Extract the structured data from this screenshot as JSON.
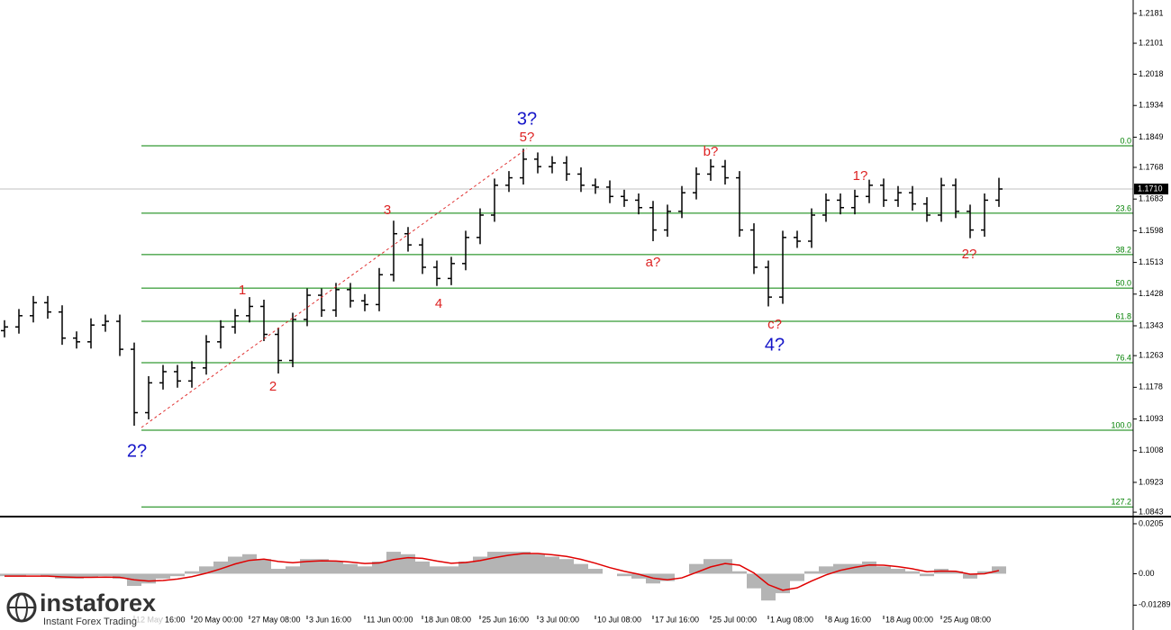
{
  "chart_data": {
    "type": "ohlc",
    "categories": [
      null,
      null,
      null,
      null,
      null,
      null,
      null,
      null,
      null,
      "12 May 16:00",
      null,
      null,
      null,
      "20 May 00:00",
      null,
      null,
      null,
      "27 May 08:00",
      null,
      null,
      null,
      "3 Jun 16:00",
      null,
      null,
      null,
      "11 Jun 00:00",
      null,
      null,
      null,
      "18 Jun 08:00",
      null,
      null,
      null,
      "25 Jun 16:00",
      null,
      null,
      null,
      "3 Jul 00:00",
      null,
      null,
      null,
      "10 Jul 08:00",
      null,
      null,
      null,
      "17 Jul 16:00",
      null,
      null,
      null,
      "25 Jul 00:00",
      null,
      null,
      null,
      "1 Aug 08:00",
      null,
      null,
      null,
      "8 Aug 16:00",
      null,
      null,
      null,
      "18 Aug 00:00",
      null,
      null,
      null,
      "25 Aug 08:00",
      null,
      null,
      null,
      null
    ],
    "open": [
      1.133,
      1.134,
      1.137,
      1.1405,
      1.138,
      1.131,
      1.13,
      1.1345,
      1.1355,
      1.128,
      1.111,
      1.119,
      1.122,
      1.1195,
      1.123,
      1.13,
      1.134,
      1.137,
      1.1395,
      1.132,
      1.125,
      1.136,
      1.1425,
      1.1385,
      1.144,
      1.141,
      1.14,
      1.148,
      1.159,
      1.156,
      1.15,
      1.147,
      1.151,
      1.158,
      1.164,
      1.172,
      1.174,
      1.179,
      1.177,
      1.178,
      1.175,
      1.172,
      1.1715,
      1.169,
      1.168,
      1.166,
      1.16,
      1.165,
      1.17,
      1.175,
      1.177,
      1.174,
      1.16,
      1.15,
      1.142,
      1.158,
      1.157,
      1.164,
      1.168,
      1.166,
      1.169,
      1.172,
      1.168,
      1.17,
      1.167,
      1.164,
      1.172,
      1.165,
      1.16,
      1.168
    ],
    "high": [
      1.1358,
      1.1388,
      1.1423,
      1.1423,
      1.1398,
      1.1328,
      1.1363,
      1.1373,
      1.1373,
      1.1298,
      1.1208,
      1.1238,
      1.1238,
      1.1248,
      1.1318,
      1.1358,
      1.1388,
      1.142,
      1.1413,
      1.1338,
      1.1378,
      1.1443,
      1.1443,
      1.1458,
      1.1458,
      1.1428,
      1.1498,
      1.1625,
      1.1608,
      1.1578,
      1.1518,
      1.1528,
      1.1598,
      1.1658,
      1.1738,
      1.1758,
      1.1818,
      1.1808,
      1.1798,
      1.1798,
      1.1768,
      1.1738,
      1.1733,
      1.1708,
      1.1698,
      1.1678,
      1.1668,
      1.1718,
      1.1768,
      1.179,
      1.1788,
      1.1758,
      1.1618,
      1.1518,
      1.1598,
      1.1598,
      1.1658,
      1.1698,
      1.1698,
      1.1708,
      1.1735,
      1.1738,
      1.1718,
      1.1718,
      1.1688,
      1.174,
      1.1738,
      1.1668,
      1.1698,
      1.174
    ],
    "low": [
      1.1312,
      1.1322,
      1.1352,
      1.1362,
      1.1292,
      1.1282,
      1.1282,
      1.1327,
      1.1262,
      1.1075,
      1.1092,
      1.1172,
      1.1177,
      1.1177,
      1.1212,
      1.1282,
      1.1322,
      1.1352,
      1.1302,
      1.1215,
      1.1232,
      1.1342,
      1.1367,
      1.1367,
      1.1392,
      1.1382,
      1.1382,
      1.1462,
      1.1542,
      1.1482,
      1.145,
      1.1452,
      1.1492,
      1.1562,
      1.1622,
      1.1702,
      1.1722,
      1.1752,
      1.1752,
      1.1732,
      1.1702,
      1.1697,
      1.1672,
      1.1662,
      1.1642,
      1.157,
      1.1582,
      1.1632,
      1.1682,
      1.1732,
      1.1722,
      1.1582,
      1.1482,
      1.1395,
      1.1402,
      1.1552,
      1.1552,
      1.1622,
      1.1642,
      1.1642,
      1.1672,
      1.1662,
      1.1662,
      1.1652,
      1.1622,
      1.1622,
      1.1632,
      1.1578,
      1.1582,
      1.1662
    ],
    "close": [
      1.134,
      1.137,
      1.1405,
      1.138,
      1.131,
      1.13,
      1.1345,
      1.1355,
      1.128,
      1.111,
      1.119,
      1.122,
      1.1195,
      1.123,
      1.13,
      1.134,
      1.137,
      1.1395,
      1.132,
      1.125,
      1.136,
      1.1425,
      1.1385,
      1.144,
      1.141,
      1.14,
      1.148,
      1.159,
      1.156,
      1.15,
      1.147,
      1.151,
      1.158,
      1.164,
      1.172,
      1.174,
      1.179,
      1.177,
      1.178,
      1.175,
      1.172,
      1.1715,
      1.169,
      1.168,
      1.166,
      1.16,
      1.165,
      1.17,
      1.175,
      1.177,
      1.174,
      1.16,
      1.15,
      1.142,
      1.158,
      1.157,
      1.164,
      1.168,
      1.166,
      1.169,
      1.172,
      1.168,
      1.17,
      1.167,
      1.164,
      1.172,
      1.165,
      1.16,
      1.168,
      1.171
    ],
    "bar_color": "#000000",
    "ylim": [
      1.0836,
      1.2217
    ],
    "yticks": [
      1.2181,
      1.2101,
      1.2018,
      1.1934,
      1.1849,
      1.1768,
      1.1683,
      1.1598,
      1.1513,
      1.1428,
      1.1343,
      1.1263,
      1.1178,
      1.1093,
      1.1008,
      1.0923,
      1.0843
    ],
    "current_price": {
      "value": 1.171,
      "label": "1.1710"
    },
    "fib_color": "#008000",
    "fib_levels": [
      {
        "price": 1.1826,
        "label": "0.0"
      },
      {
        "price": 1.1645,
        "label": "23.6"
      },
      {
        "price": 1.1534,
        "label": "38.2"
      },
      {
        "price": 1.1444,
        "label": "50.0"
      },
      {
        "price": 1.1355,
        "label": "61.8"
      },
      {
        "price": 1.1244,
        "label": "76.4"
      },
      {
        "price": 1.1063,
        "label": "100.0"
      },
      {
        "price": 1.0857,
        "label": "127.2"
      }
    ],
    "annotations": [
      "3?",
      "5?",
      "1",
      "2",
      "3",
      "4",
      "a?",
      "b?",
      "c?",
      "4?",
      "2?",
      "1?",
      "2?"
    ],
    "indicator": {
      "type": "macd",
      "histogram_color": "#b4b4b4",
      "signal_color": "#e00000",
      "histogram": [
        -0.001,
        -0.001,
        -0.0005,
        -0.001,
        -0.002,
        -0.002,
        -0.0015,
        -0.001,
        -0.002,
        -0.005,
        -0.004,
        -0.002,
        -0.001,
        0.001,
        0.003,
        0.005,
        0.007,
        0.008,
        0.006,
        0.002,
        0.003,
        0.006,
        0.006,
        0.005,
        0.004,
        0.003,
        0.005,
        0.009,
        0.008,
        0.005,
        0.003,
        0.003,
        0.005,
        0.007,
        0.009,
        0.009,
        0.009,
        0.008,
        0.007,
        0.006,
        0.004,
        0.002,
        0.0,
        -0.001,
        -0.002,
        -0.004,
        -0.003,
        0.0,
        0.004,
        0.006,
        0.006,
        0.001,
        -0.006,
        -0.011,
        -0.008,
        -0.003,
        0.001,
        0.003,
        0.004,
        0.004,
        0.005,
        0.003,
        0.002,
        0.001,
        -0.001,
        0.002,
        0.001,
        -0.002,
        0.001,
        0.003
      ],
      "signal": [
        -0.001,
        -0.001,
        -0.001,
        -0.001,
        -0.0013,
        -0.0015,
        -0.0015,
        -0.0014,
        -0.0015,
        -0.0025,
        -0.003,
        -0.0028,
        -0.0022,
        -0.0012,
        0.0002,
        0.002,
        0.004,
        0.0055,
        0.006,
        0.005,
        0.0045,
        0.005,
        0.0053,
        0.0052,
        0.0048,
        0.0042,
        0.0044,
        0.0058,
        0.0066,
        0.0063,
        0.0052,
        0.0043,
        0.0046,
        0.0054,
        0.0066,
        0.0076,
        0.0083,
        0.0083,
        0.0078,
        0.0071,
        0.0059,
        0.0043,
        0.0025,
        0.001,
        -0.0002,
        -0.0018,
        -0.0025,
        -0.0017,
        0.0005,
        0.0028,
        0.0042,
        0.0035,
        0.0003,
        -0.0045,
        -0.0068,
        -0.0058,
        -0.003,
        -0.0005,
        0.0014,
        0.0026,
        0.0036,
        0.0035,
        0.0029,
        0.002,
        0.0008,
        0.0011,
        0.001,
        -0.0002,
        0,
        0.0013
      ],
      "ylim": [
        -0.0231,
        0.0227
      ],
      "yticks": [
        0.0205,
        {
          "value": 0,
          "label": "0.00"
        },
        -0.01289
      ]
    }
  },
  "watermark": {
    "brand": "instaforex",
    "tagline": "Instant Forex Trading"
  }
}
